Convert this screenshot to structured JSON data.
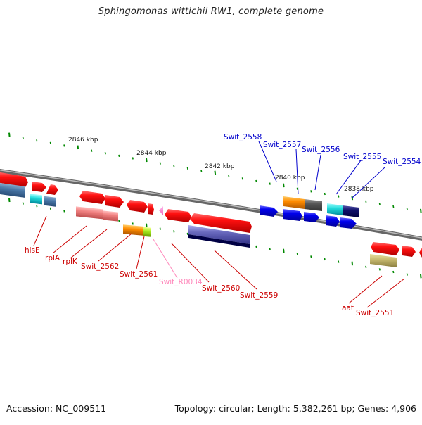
{
  "title": "Sphingomonas wittichii RW1, complete genome",
  "footer": {
    "accession": "Accession: NC_009511",
    "summary": "Topology: circular; Length: 5,382,261 bp; Genes: 4,906"
  },
  "colors": {
    "red_gene": "#ff0000",
    "blue_gene": "#0000ee",
    "label_red": "#cc0000",
    "label_blue": "#0000cc",
    "label_pink": "#ff88bb",
    "tick_green": "#008800",
    "backbone": "#888888"
  },
  "kbp_ticks": [
    "2846 kbp",
    "2844 kbp",
    "2842 kbp",
    "2840 kbp",
    "2838 kbp"
  ],
  "gene_labels": {
    "top": [
      "Swit_2558",
      "Swit_2557",
      "Swit_2556",
      "Swit_2555",
      "Swit_2554"
    ],
    "bottom": [
      "hisE",
      "rplA",
      "rplK",
      "Swit_2562",
      "Swit_2561",
      "Swit_R0034",
      "Swit_2560",
      "Swit_2559",
      "aat",
      "Swit_2551"
    ]
  }
}
